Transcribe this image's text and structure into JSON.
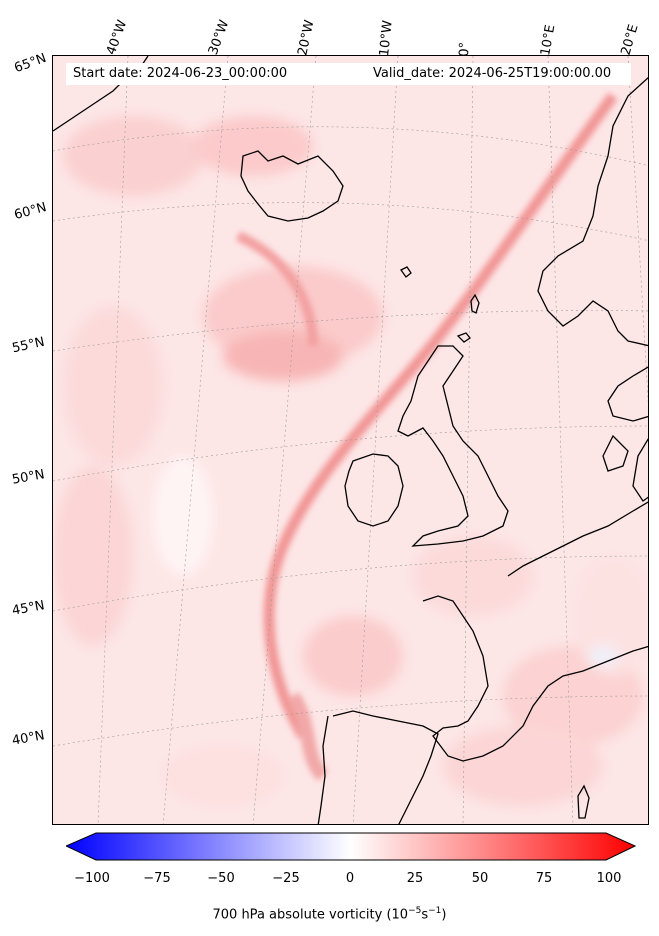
{
  "header": {
    "start_date": "Start date: 2024-06-23_00:00:00",
    "valid_date": "Valid_date: 2024-06-25T19:00:00.00"
  },
  "longitude_labels": [
    "40°W",
    "30°W",
    "20°W",
    "10°W",
    "0°",
    "10°E",
    "20°E"
  ],
  "latitude_labels": [
    "65°N",
    "60°N",
    "55°N",
    "50°N",
    "45°N",
    "40°N"
  ],
  "colorbar": {
    "ticks": [
      "−100",
      "−75",
      "−50",
      "−25",
      "0",
      "25",
      "50",
      "75",
      "100"
    ],
    "label": "700 hPa absolute vorticity (10",
    "label_exp1": "−5",
    "label_mid": "s",
    "label_exp2": "−1",
    "label_end": ")",
    "min_color": "#0000ff",
    "mid_color": "#ffffff",
    "max_color": "#ff0000"
  }
}
